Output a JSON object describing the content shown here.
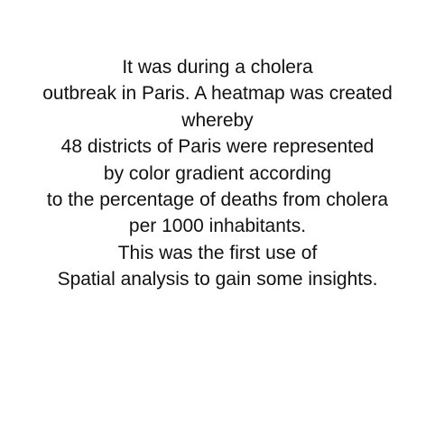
{
  "document": {
    "lines": [
      "It was during a cholera",
      "outbreak in Paris. A heatmap was created",
      "whereby",
      "48 districts of Paris were represented",
      "by color gradient according",
      "to the percentage of deaths from cholera",
      "per 1000 inhabitants.",
      "This was the first use of",
      "Spatial analysis to gain some insights."
    ]
  }
}
